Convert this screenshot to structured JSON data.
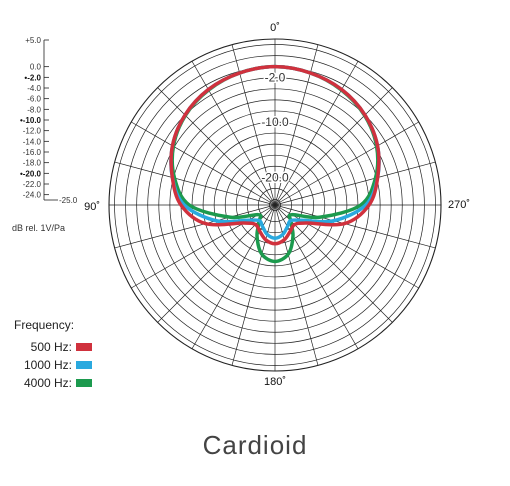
{
  "chart_data": {
    "type": "polar",
    "title": "Cardioid",
    "radial_unit": "dB rel. 1V/Pa",
    "radial_range_db": [
      -25.0,
      5.0
    ],
    "scale_ticks": [
      "+5.0",
      "0.0",
      "-2.0",
      "-4.0",
      "-6.0",
      "-8.0",
      "-10.0",
      "-12.0",
      "-14.0",
      "-16.0",
      "-18.0",
      "-20.0",
      "-22.0",
      "-24.0",
      "-25.0"
    ],
    "bold_ticks": [
      "-2.0",
      "-10.0",
      "-20.0"
    ],
    "ring_labels": [
      "-2.0",
      "-10.0",
      "-20.0"
    ],
    "angle_labels": {
      "top": "0˚",
      "left": "90˚",
      "right": "270˚",
      "bottom": "180˚"
    },
    "angles_deg": [
      0,
      15,
      30,
      45,
      60,
      75,
      90,
      105,
      120,
      135,
      150,
      165,
      180
    ],
    "series": [
      {
        "name": "500 Hz:",
        "color": "#d0313d",
        "values_db": [
          0,
          -0.3,
          -0.9,
          -2.0,
          -3.6,
          -5.8,
          -8.0,
          -12.0,
          -18.5,
          -20.0,
          -19.5,
          -18.5,
          -18.0
        ]
      },
      {
        "name": "1000 Hz:",
        "color": "#2aa9df",
        "values_db": [
          0,
          -0.3,
          -0.9,
          -2.0,
          -3.6,
          -5.8,
          -8.6,
          -14.0,
          -19.5,
          -21.0,
          -20.5,
          -19.5,
          -19.0
        ]
      },
      {
        "name": "4000 Hz:",
        "color": "#1c9a4e",
        "values_db": [
          0,
          -0.3,
          -1.0,
          -2.1,
          -3.8,
          -6.2,
          -9.5,
          -16.5,
          -21.5,
          -21.0,
          -18.5,
          -15.8,
          -14.8
        ]
      }
    ]
  },
  "legend": {
    "title": "Frequency:",
    "items": [
      {
        "label": "500 Hz:",
        "color": "#d0313d"
      },
      {
        "label": "1000 Hz:",
        "color": "#2aa9df"
      },
      {
        "label": "4000 Hz:",
        "color": "#1c9a4e"
      }
    ]
  }
}
